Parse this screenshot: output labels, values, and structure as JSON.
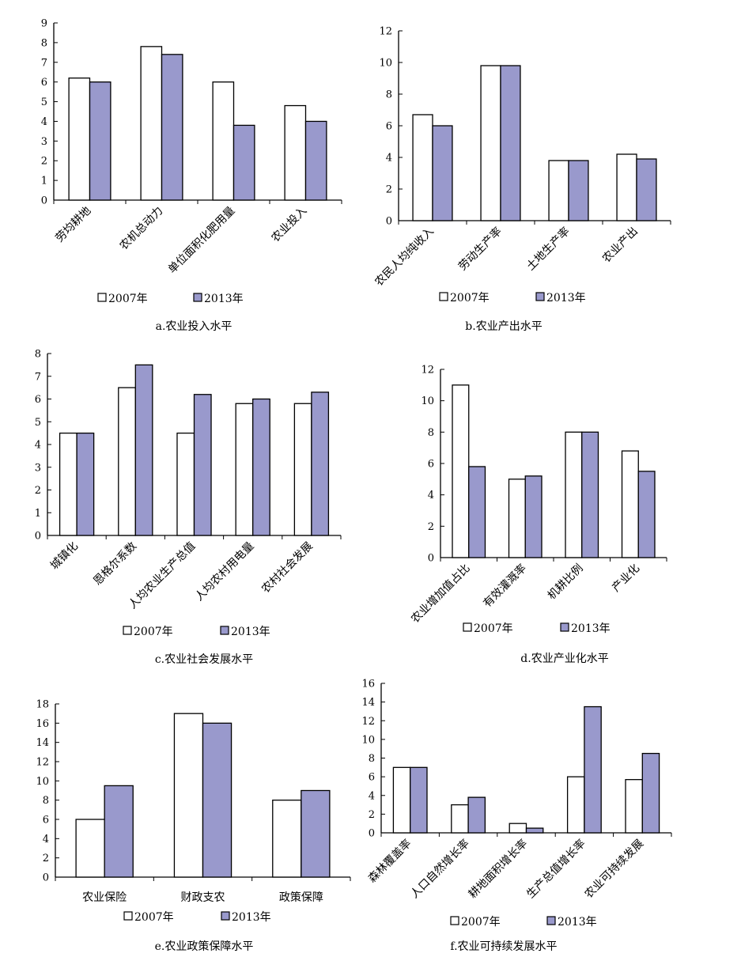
{
  "legend": {
    "a": "2007年",
    "b": "2013年"
  },
  "colors": {
    "series_a": "#ffffff",
    "series_b": "#9999cc",
    "stroke": "#000000"
  },
  "chart_data": [
    {
      "id": "a",
      "type": "bar",
      "caption": "a.农业投入水平",
      "categories": [
        "劳均耕地",
        "农机总动力",
        "单位面积化肥用量",
        "农业投入"
      ],
      "series": [
        {
          "name": "2007年",
          "values": [
            6.2,
            7.8,
            6.0,
            4.8
          ]
        },
        {
          "name": "2013年",
          "values": [
            6.0,
            7.4,
            3.8,
            4.0
          ]
        }
      ],
      "ylim": [
        0,
        9
      ],
      "yticks": [
        0,
        1,
        2,
        3,
        4,
        5,
        6,
        7,
        8,
        9
      ],
      "grid": false,
      "legend_position": "bottom"
    },
    {
      "id": "b",
      "type": "bar",
      "caption": "b.农业产出水平",
      "categories": [
        "农民人均纯收入",
        "劳动生产率",
        "土地生产率",
        "农业产出"
      ],
      "series": [
        {
          "name": "2007年",
          "values": [
            6.7,
            9.8,
            3.8,
            4.2
          ]
        },
        {
          "name": "2013年",
          "values": [
            6.0,
            9.8,
            3.8,
            3.9
          ]
        }
      ],
      "ylim": [
        0,
        12
      ],
      "yticks": [
        0,
        2,
        4,
        6,
        8,
        10,
        12
      ],
      "grid": false,
      "legend_position": "bottom"
    },
    {
      "id": "c",
      "type": "bar",
      "caption": "c.农业社会发展水平",
      "categories": [
        "城镇化",
        "恩格尔系数",
        "人均农业生产总值",
        "人均农村用电量",
        "农村社会发展"
      ],
      "series": [
        {
          "name": "2007年",
          "values": [
            4.5,
            6.5,
            4.5,
            5.8,
            5.8
          ]
        },
        {
          "name": "2013年",
          "values": [
            4.5,
            7.5,
            6.2,
            6.0,
            6.3
          ]
        }
      ],
      "ylim": [
        0,
        8
      ],
      "yticks": [
        0,
        1,
        2,
        3,
        4,
        5,
        6,
        7,
        8
      ],
      "grid": false,
      "legend_position": "bottom"
    },
    {
      "id": "d",
      "type": "bar",
      "caption": "d.农业产业化水平",
      "categories": [
        "农业增加值占比",
        "有效灌溉率",
        "机耕比例",
        "产业化"
      ],
      "series": [
        {
          "name": "2007年",
          "values": [
            11.0,
            5.0,
            8.0,
            6.8
          ]
        },
        {
          "name": "2013年",
          "values": [
            5.8,
            5.2,
            8.0,
            5.5
          ]
        }
      ],
      "ylim": [
        0,
        12
      ],
      "yticks": [
        0,
        2,
        4,
        6,
        8,
        10,
        12
      ],
      "grid": false,
      "legend_position": "bottom"
    },
    {
      "id": "e",
      "type": "bar",
      "caption": "e.农业政策保障水平",
      "categories": [
        "农业保险",
        "财政支农",
        "政策保障"
      ],
      "series": [
        {
          "name": "2007年",
          "values": [
            6.0,
            17.0,
            8.0
          ]
        },
        {
          "name": "2013年",
          "values": [
            9.5,
            16.0,
            9.0
          ]
        }
      ],
      "ylim": [
        0,
        18
      ],
      "yticks": [
        0,
        2,
        4,
        6,
        8,
        10,
        12,
        14,
        16,
        18
      ],
      "grid": false,
      "legend_position": "bottom"
    },
    {
      "id": "f",
      "type": "bar",
      "caption": "f.农业可持续发展水平",
      "categories": [
        "森林覆盖率",
        "人口自然增长率",
        "耕地面积增长率",
        "生产总值增长率",
        "农业可持续发展"
      ],
      "series": [
        {
          "name": "2007年",
          "values": [
            7.0,
            3.0,
            1.0,
            6.0,
            5.7
          ]
        },
        {
          "name": "2013年",
          "values": [
            7.0,
            3.8,
            0.5,
            13.5,
            8.5
          ]
        }
      ],
      "ylim": [
        0,
        16
      ],
      "yticks": [
        0,
        2,
        4,
        6,
        8,
        10,
        12,
        14,
        16
      ],
      "grid": false,
      "legend_position": "bottom"
    }
  ]
}
